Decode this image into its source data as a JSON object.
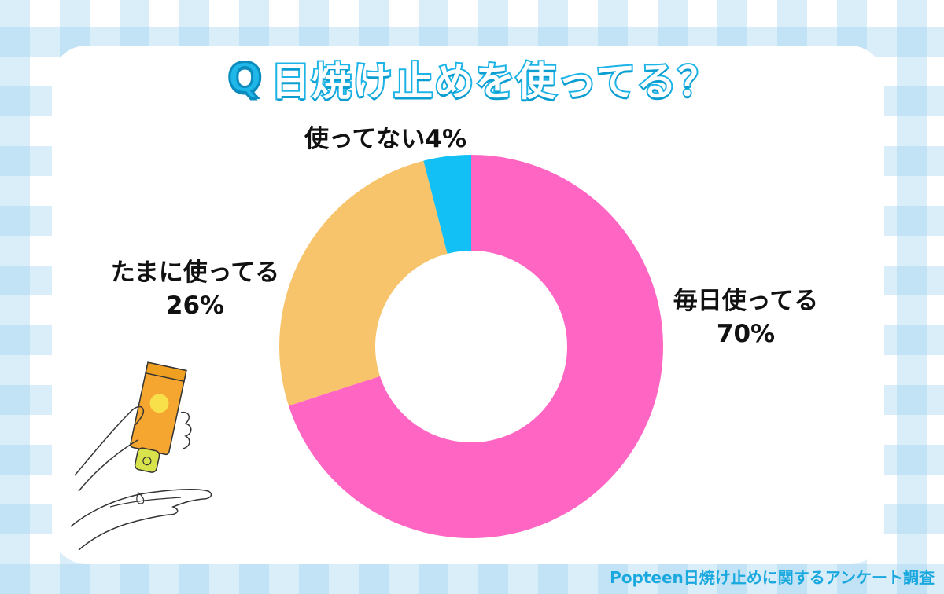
{
  "title": {
    "q_mark": "Q",
    "text": "日焼け止めを使ってる？"
  },
  "chart_data": {
    "type": "pie",
    "donut": true,
    "title": "日焼け止めを使ってる？",
    "slices": [
      {
        "label_line1": "毎日使ってる",
        "label_line2": "70%",
        "value": 70,
        "color": "#ff66c4"
      },
      {
        "label_line1": "たまに使ってる",
        "label_line2": "26%",
        "value": 26,
        "color": "#f7c46c"
      },
      {
        "label_line1": "使ってない4%",
        "label_line2": "",
        "value": 4,
        "color": "#12c0f5"
      }
    ]
  },
  "source": "Popteen日焼け止めに関するアンケート調査",
  "colors": {
    "accent": "#1cb4e6",
    "background_check": "#96cdf0"
  },
  "illustration": {
    "icon": "hands-with-sunscreen-tube-icon"
  }
}
